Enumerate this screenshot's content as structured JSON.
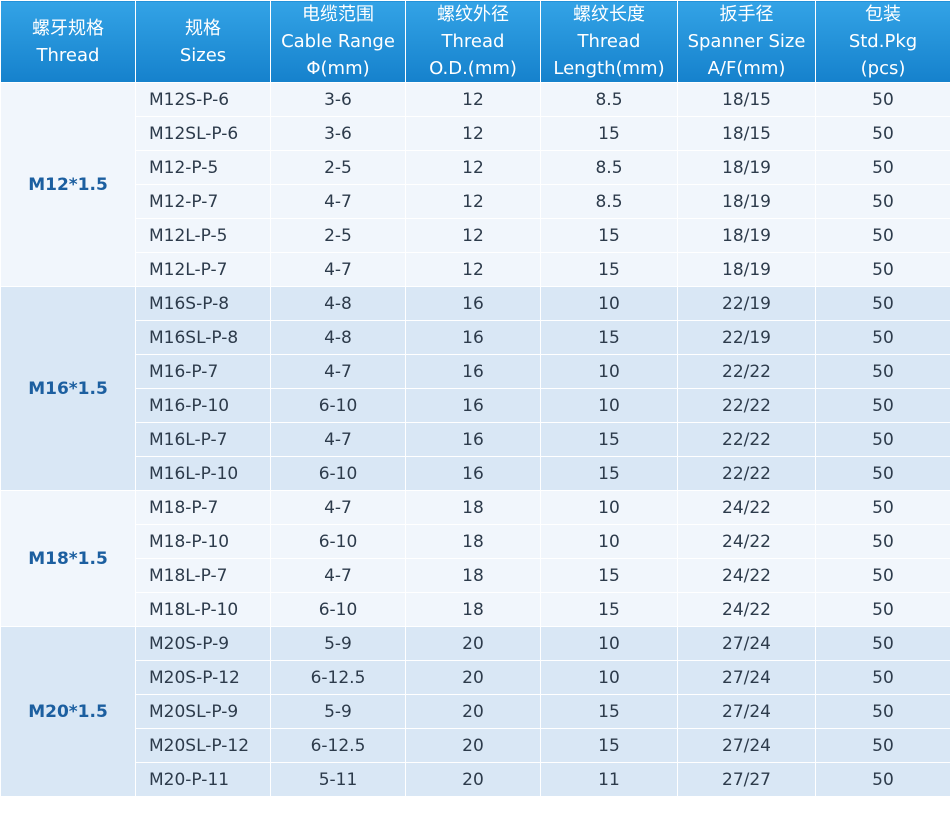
{
  "header": [
    [
      "螺牙规格",
      "Thread"
    ],
    [
      "规格",
      "Sizes"
    ],
    [
      "电缆范围",
      "Cable Range",
      "Φ(mm)"
    ],
    [
      "螺纹外径",
      "Thread",
      "O.D.(mm)"
    ],
    [
      "螺纹长度",
      "Thread",
      "Length(mm)"
    ],
    [
      "扳手径",
      "Spanner Size",
      "A/F(mm)"
    ],
    [
      "包装",
      "Std.Pkg",
      "(pcs)"
    ]
  ],
  "groups": [
    {
      "thread": "M12*1.5",
      "rows": [
        [
          "M12S-P-6",
          "3-6",
          "12",
          "8.5",
          "18/15",
          "50"
        ],
        [
          "M12SL-P-6",
          "3-6",
          "12",
          "15",
          "18/15",
          "50"
        ],
        [
          "M12-P-5",
          "2-5",
          "12",
          "8.5",
          "18/19",
          "50"
        ],
        [
          "M12-P-7",
          "4-7",
          "12",
          "8.5",
          "18/19",
          "50"
        ],
        [
          "M12L-P-5",
          "2-5",
          "12",
          "15",
          "18/19",
          "50"
        ],
        [
          "M12L-P-7",
          "4-7",
          "12",
          "15",
          "18/19",
          "50"
        ]
      ]
    },
    {
      "thread": "M16*1.5",
      "rows": [
        [
          "M16S-P-8",
          "4-8",
          "16",
          "10",
          "22/19",
          "50"
        ],
        [
          "M16SL-P-8",
          "4-8",
          "16",
          "15",
          "22/19",
          "50"
        ],
        [
          "M16-P-7",
          "4-7",
          "16",
          "10",
          "22/22",
          "50"
        ],
        [
          "M16-P-10",
          "6-10",
          "16",
          "10",
          "22/22",
          "50"
        ],
        [
          "M16L-P-7",
          "4-7",
          "16",
          "15",
          "22/22",
          "50"
        ],
        [
          "M16L-P-10",
          "6-10",
          "16",
          "15",
          "22/22",
          "50"
        ]
      ]
    },
    {
      "thread": "M18*1.5",
      "rows": [
        [
          "M18-P-7",
          "4-7",
          "18",
          "10",
          "24/22",
          "50"
        ],
        [
          "M18-P-10",
          "6-10",
          "18",
          "10",
          "24/22",
          "50"
        ],
        [
          "M18L-P-7",
          "4-7",
          "18",
          "15",
          "24/22",
          "50"
        ],
        [
          "M18L-P-10",
          "6-10",
          "18",
          "15",
          "24/22",
          "50"
        ]
      ]
    },
    {
      "thread": "M20*1.5",
      "rows": [
        [
          "M20S-P-9",
          "5-9",
          "20",
          "10",
          "27/24",
          "50"
        ],
        [
          "M20S-P-12",
          "6-12.5",
          "20",
          "10",
          "27/24",
          "50"
        ],
        [
          "M20SL-P-9",
          "5-9",
          "20",
          "15",
          "27/24",
          "50"
        ],
        [
          "M20SL-P-12",
          "6-12.5",
          "20",
          "15",
          "27/24",
          "50"
        ],
        [
          "M20-P-11",
          "5-11",
          "20",
          "11",
          "27/27",
          "50"
        ]
      ]
    }
  ]
}
